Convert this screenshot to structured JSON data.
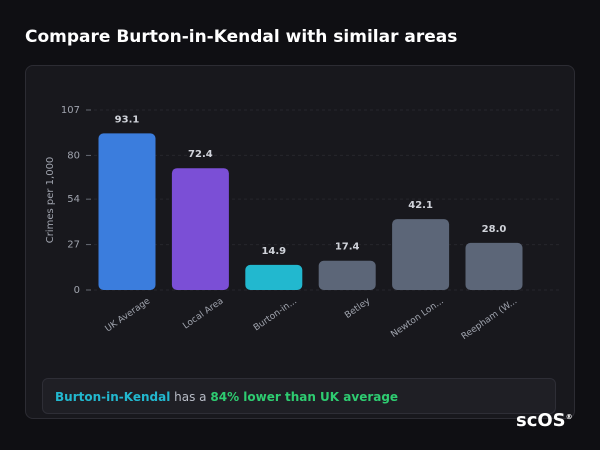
{
  "chart_data": {
    "type": "bar",
    "title": "Compare Burton-in-Kendal with similar areas",
    "y_label": "Crimes per 1,000",
    "categories": [
      "UK Average",
      "Local Area",
      "Burton-in...",
      "Betley",
      "Newton Lon...",
      "Reepham (W..."
    ],
    "values": [
      93.1,
      72.4,
      14.9,
      17.4,
      42.1,
      28.0
    ],
    "value_labels": [
      "93.1",
      "72.4",
      "14.9",
      "17.4",
      "42.1",
      "28.0"
    ],
    "colors": [
      "#3b7ddd",
      "#7b4fd6",
      "#22b8cf",
      "#5c6678",
      "#5c6678",
      "#5c6678"
    ],
    "ylim": [
      0,
      107
    ],
    "yticks": [
      0,
      27,
      54,
      80,
      107
    ],
    "grid": true
  },
  "summary": {
    "area": "Burton-in-Kendal",
    "connector": "has a",
    "highlight": "84% lower than UK average"
  },
  "logo": {
    "text": "scOS",
    "mark": "®"
  }
}
